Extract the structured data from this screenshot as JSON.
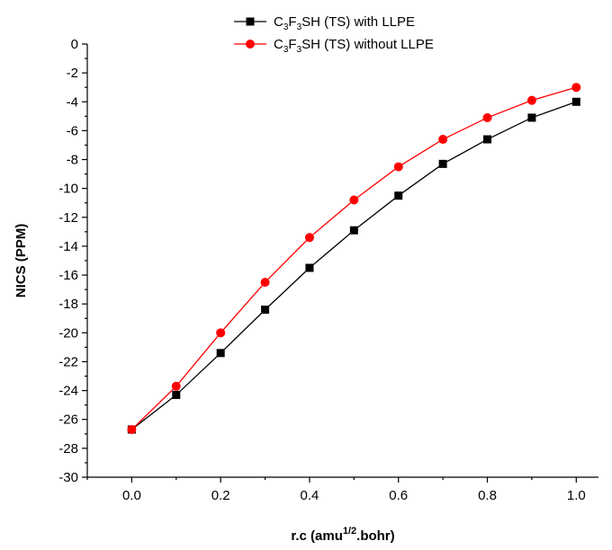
{
  "chart_data": {
    "type": "line",
    "xlabel": "r.c (amu1/2.bohr)",
    "xlabel_parts": {
      "main": "r.c (amu",
      "sup": "1/2",
      "tail": ".bohr)"
    },
    "ylabel": "NICS (PPM)",
    "xlim": [
      -0.1,
      1.05
    ],
    "ylim": [
      -30,
      0
    ],
    "x_ticks": [
      0.0,
      0.2,
      0.4,
      0.6,
      0.8,
      1.0
    ],
    "x_tick_labels": [
      "0.0",
      "0.2",
      "0.4",
      "0.6",
      "0.8",
      "1.0"
    ],
    "y_ticks": [
      0,
      -2,
      -4,
      -6,
      -8,
      -10,
      -12,
      -14,
      -16,
      -18,
      -20,
      -22,
      -24,
      -26,
      -28,
      -30
    ],
    "y_tick_labels": [
      "0",
      "-2",
      "-4",
      "-6",
      "-8",
      "-10",
      "-12",
      "-14",
      "-16",
      "-18",
      "-20",
      "-22",
      "-24",
      "-26",
      "-28",
      "-30"
    ],
    "legend_position": "top-right",
    "grid": false,
    "x": [
      0.0,
      0.1,
      0.2,
      0.3,
      0.4,
      0.5,
      0.6,
      0.7,
      0.8,
      0.9,
      1.0
    ],
    "series": [
      {
        "name": "C3F3SH (TS) with LLPE",
        "name_parts": [
          "C",
          "3",
          "F",
          "3",
          "SH (TS) with LLPE"
        ],
        "color": "#000000",
        "marker": "square",
        "values": [
          -26.7,
          -24.3,
          -21.4,
          -18.4,
          -15.5,
          -12.9,
          -10.5,
          -8.3,
          -6.6,
          -5.1,
          -4.0
        ]
      },
      {
        "name": "C3F3SH (TS) without LLPE",
        "name_parts": [
          "C",
          "3",
          "F",
          "3",
          "SH (TS) without LLPE"
        ],
        "color": "#ff0000",
        "marker": "circle",
        "values": [
          -26.7,
          -23.7,
          -20.0,
          -16.5,
          -13.4,
          -10.8,
          -8.5,
          -6.6,
          -5.1,
          -3.9,
          -3.0
        ]
      }
    ]
  }
}
